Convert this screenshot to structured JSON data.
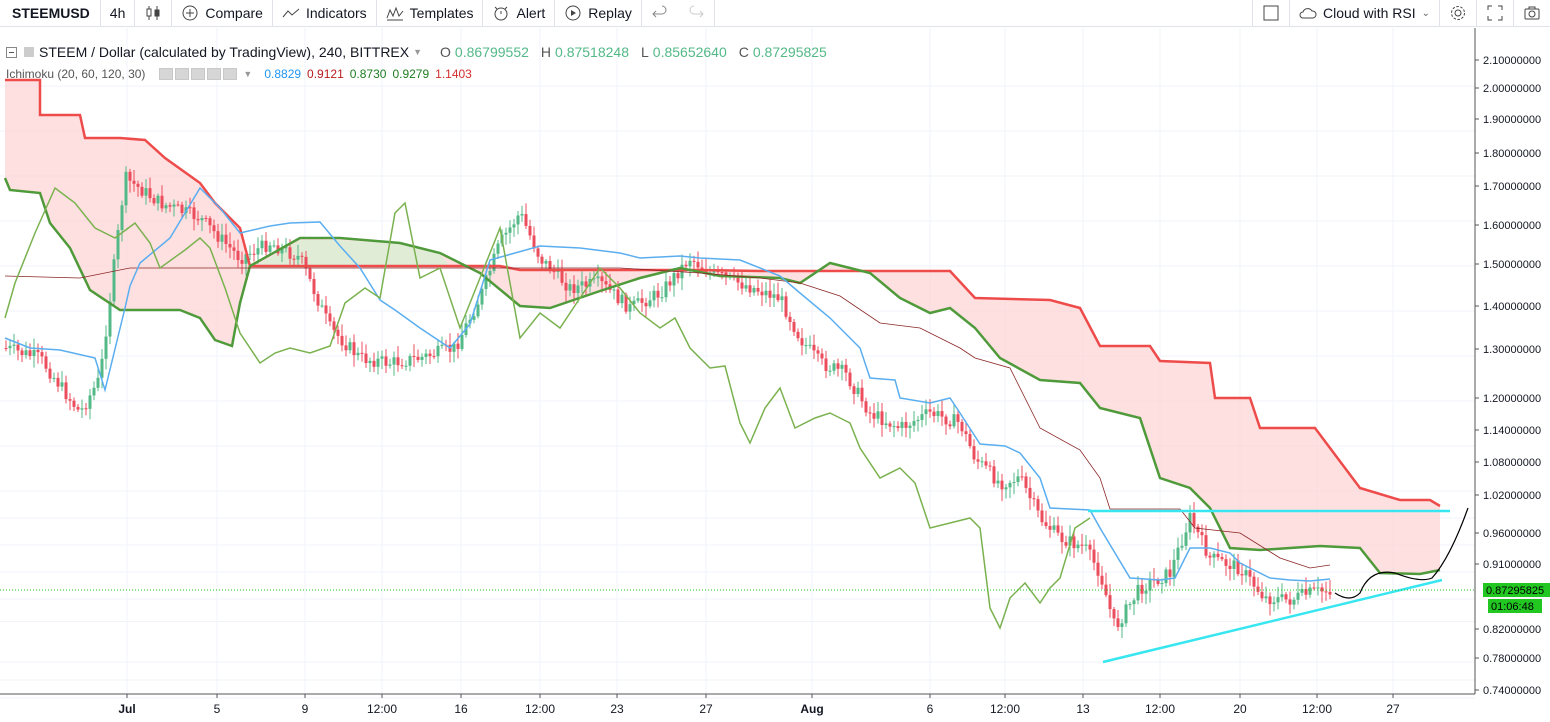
{
  "toolbar": {
    "symbol": "STEEMUSD",
    "interval": "4h",
    "compare": "Compare",
    "indicators": "Indicators",
    "templates": "Templates",
    "alert": "Alert",
    "replay": "Replay",
    "layout_name": "Cloud with RSI"
  },
  "legend": {
    "title": "STEEM / Dollar (calculated by TradingView), 240, BITTREX",
    "o_label": "O",
    "o": "0.86799552",
    "h_label": "H",
    "h": "0.87518248",
    "l_label": "L",
    "l": "0.85652640",
    "c_label": "C",
    "c": "0.87295825"
  },
  "indicator": {
    "name": "Ichimoku (20, 60, 120, 30)",
    "v1": "0.8829",
    "v1_color": "#2196f3",
    "v2": "0.9121",
    "v2_color": "#b71c1c",
    "v3": "0.8730",
    "v3_color": "#1e7b1e",
    "v4": "0.9279",
    "v4_color": "#1e7b1e",
    "v5": "1.1403",
    "v5_color": "#d32f2f"
  },
  "price_axis": {
    "labels": [
      "2.10000000",
      "2.00000000",
      "1.90000000",
      "1.80000000",
      "1.70000000",
      "1.60000000",
      "1.50000000",
      "1.40000000",
      "1.30000000",
      "1.20000000",
      "1.14000000",
      "1.08000000",
      "1.02000000",
      "0.96000000",
      "0.91000000",
      "0.82000000",
      "0.78000000",
      "0.74000000"
    ],
    "last_price": "0.87295825",
    "countdown": "01:06:48"
  },
  "time_axis": {
    "labels": [
      "Jul",
      "5",
      "9",
      "12:00",
      "16",
      "12:00",
      "23",
      "27",
      "Aug",
      "6",
      "12:00",
      "13",
      "12:00",
      "20",
      "12:00",
      "27"
    ]
  },
  "chart_data": {
    "type": "candlestick",
    "title": "STEEM / Dollar (calculated by TradingView), 240, BITTREX",
    "y_range": [
      0.74,
      2.12
    ],
    "last_close": 0.87295825,
    "colors": {
      "up": "#53b987",
      "down": "#eb4d5c",
      "tenkan": "#5aaef0",
      "kijun": "#8b2525",
      "span_a": "#4f9a3a",
      "span_b": "#ee4b4b",
      "lagging": "#7ab24f",
      "cloud_bear": "#ffd6d6",
      "cloud_bull": "#d9efd5",
      "trendline": "#37e6f0"
    }
  }
}
